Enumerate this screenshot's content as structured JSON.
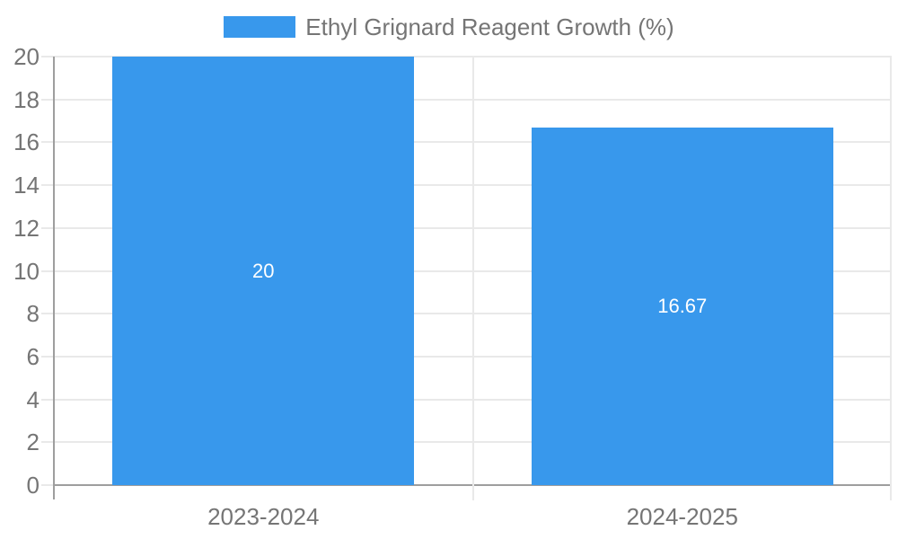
{
  "chart_data": {
    "type": "bar",
    "legend": {
      "label": "Ethyl Grignard Reagent Growth (%)",
      "position": "top"
    },
    "categories": [
      "2023-2024",
      "2024-2025"
    ],
    "values": [
      20,
      16.67
    ],
    "data_labels": [
      "20",
      "16.67"
    ],
    "ylim": [
      0,
      20
    ],
    "yticks": [
      0,
      2,
      4,
      6,
      8,
      10,
      12,
      14,
      16,
      18,
      20
    ],
    "grid": true,
    "colors": {
      "bar": "#3898ec",
      "axis_text": "#757575",
      "gridline": "#e9e9e9",
      "axis_line": "#9e9e9e",
      "data_label_text": "#ffffff",
      "background": "#ffffff"
    }
  }
}
